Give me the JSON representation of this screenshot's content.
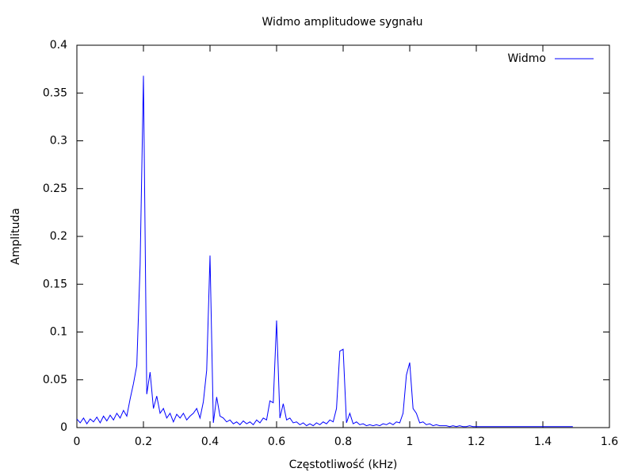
{
  "chart_data": {
    "type": "line",
    "title": "Widmo amplitudowe sygnału",
    "x_label": "Częstotliwość (kHz)",
    "y_label": "Amplituda",
    "x": [
      0,
      0.01,
      0.02,
      0.03,
      0.04,
      0.05,
      0.06,
      0.07,
      0.08,
      0.09,
      0.1,
      0.11,
      0.12,
      0.13,
      0.14,
      0.15,
      0.16,
      0.17,
      0.18,
      0.19,
      0.2,
      0.21,
      0.22,
      0.23,
      0.24,
      0.25,
      0.26,
      0.27,
      0.28,
      0.29,
      0.3,
      0.31,
      0.32,
      0.33,
      0.34,
      0.35,
      0.36,
      0.37,
      0.38,
      0.39,
      0.4,
      0.41,
      0.42,
      0.43,
      0.44,
      0.45,
      0.46,
      0.47,
      0.48,
      0.49,
      0.5,
      0.51,
      0.52,
      0.53,
      0.54,
      0.55,
      0.56,
      0.57,
      0.58,
      0.59,
      0.6,
      0.61,
      0.62,
      0.63,
      0.64,
      0.65,
      0.66,
      0.67,
      0.68,
      0.69,
      0.7,
      0.71,
      0.72,
      0.73,
      0.74,
      0.75,
      0.76,
      0.77,
      0.78,
      0.79,
      0.8,
      0.81,
      0.82,
      0.83,
      0.84,
      0.85,
      0.86,
      0.87,
      0.88,
      0.89,
      0.9,
      0.91,
      0.92,
      0.93,
      0.94,
      0.95,
      0.96,
      0.97,
      0.98,
      0.99,
      1,
      1.01,
      1.02,
      1.03,
      1.04,
      1.05,
      1.06,
      1.07,
      1.08,
      1.09,
      1.1,
      1.11,
      1.12,
      1.13,
      1.14,
      1.15,
      1.16,
      1.17,
      1.18,
      1.19,
      1.2,
      1.21,
      1.22,
      1.23,
      1.24,
      1.25,
      1.26,
      1.27,
      1.28,
      1.29,
      1.3,
      1.31,
      1.32,
      1.33,
      1.34,
      1.35,
      1.36,
      1.37,
      1.38,
      1.39,
      1.4,
      1.41,
      1.42,
      1.43,
      1.44,
      1.45,
      1.46,
      1.47,
      1.48,
      1.49
    ],
    "series": [
      {
        "name": "Widmo",
        "color": "#0000ff",
        "values": [
          0.009,
          0.005,
          0.01,
          0.004,
          0.009,
          0.006,
          0.011,
          0.005,
          0.012,
          0.007,
          0.013,
          0.008,
          0.015,
          0.01,
          0.018,
          0.012,
          0.03,
          0.046,
          0.065,
          0.17,
          0.368,
          0.035,
          0.058,
          0.02,
          0.033,
          0.015,
          0.02,
          0.01,
          0.015,
          0.006,
          0.014,
          0.01,
          0.015,
          0.008,
          0.012,
          0.015,
          0.02,
          0.01,
          0.027,
          0.06,
          0.18,
          0.005,
          0.032,
          0.012,
          0.01,
          0.006,
          0.008,
          0.004,
          0.006,
          0.003,
          0.007,
          0.004,
          0.006,
          0.003,
          0.008,
          0.005,
          0.01,
          0.008,
          0.028,
          0.026,
          0.112,
          0.01,
          0.025,
          0.008,
          0.01,
          0.005,
          0.006,
          0.003,
          0.005,
          0.002,
          0.004,
          0.002,
          0.005,
          0.003,
          0.006,
          0.004,
          0.008,
          0.006,
          0.02,
          0.08,
          0.082,
          0.005,
          0.015,
          0.004,
          0.006,
          0.003,
          0.004,
          0.002,
          0.003,
          0.002,
          0.003,
          0.002,
          0.004,
          0.003,
          0.005,
          0.003,
          0.006,
          0.005,
          0.015,
          0.055,
          0.068,
          0.02,
          0.015,
          0.005,
          0.006,
          0.003,
          0.004,
          0.002,
          0.003,
          0.002,
          0.002,
          0.002,
          0.001,
          0.002,
          0.001,
          0.002,
          0.001,
          0.001,
          0.002,
          0.001,
          0.001,
          0.001,
          0.001,
          0.001,
          0.001,
          0.001,
          0.001,
          0.001,
          0.001,
          0.001,
          0.001,
          0.001,
          0.001,
          0.001,
          0.001,
          0.001,
          0.001,
          0.001,
          0.001,
          0.001,
          0.001,
          0.001,
          0.001,
          0.001,
          0.001,
          0.001,
          0.001,
          0.001,
          0.001,
          0.001
        ]
      }
    ],
    "xlim": [
      0,
      1.6
    ],
    "xticks": [
      0,
      0.2,
      0.4,
      0.6,
      0.8,
      1,
      1.2,
      1.4,
      1.6
    ],
    "ylim": [
      0,
      0.4
    ],
    "yticks": [
      0,
      0.05,
      0.1,
      0.15,
      0.2,
      0.25,
      0.3,
      0.35,
      0.4
    ],
    "legend": "top-right"
  }
}
